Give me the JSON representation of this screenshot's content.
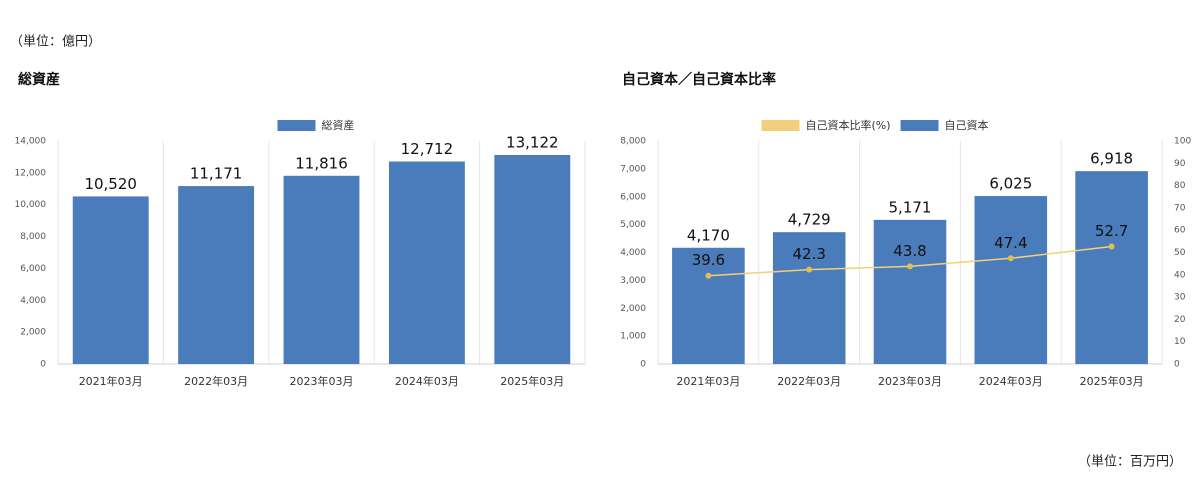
{
  "notes": {
    "top": "（単位：億円）",
    "bottom": "（単位：百万円）"
  },
  "chart_data": [
    {
      "type": "bar",
      "title": "総資産",
      "categories": [
        "2021年03月",
        "2022年03月",
        "2023年03月",
        "2024年03月",
        "2025年03月"
      ],
      "series": [
        {
          "name": "総資産",
          "type": "bar",
          "color": "#4a7bba",
          "values": [
            10520,
            11171,
            11816,
            12712,
            13122
          ],
          "value_labels": [
            "10,520",
            "11,171",
            "11,816",
            "12,712",
            "13,122"
          ]
        }
      ],
      "ylim": [
        0,
        14000
      ],
      "yticks": [
        0,
        {
          "value": 2000,
          "label": "2,000"
        },
        {
          "value": 4000,
          "label": "4,000"
        },
        {
          "value": 6000,
          "label": "6,000"
        },
        {
          "value": 8000,
          "label": "8,000"
        },
        {
          "value": 10000,
          "label": "10,000"
        },
        {
          "value": 12000,
          "label": "12,000"
        },
        {
          "value": 14000,
          "label": "14,000"
        }
      ],
      "grid": false,
      "legend": "top"
    },
    {
      "type": "combo",
      "title": "自己資本／自己資本比率",
      "categories": [
        "2021年03月",
        "2022年03月",
        "2023年03月",
        "2024年03月",
        "2025年03月"
      ],
      "series": [
        {
          "name": "自己資本比率(%)",
          "type": "line",
          "axis": "y2",
          "color": "#f2cf7c",
          "marker_color": "#e2bd52",
          "values": [
            39.6,
            42.3,
            43.8,
            47.4,
            52.7
          ]
        },
        {
          "name": "自己資本",
          "type": "bar",
          "color": "#4a7bba",
          "values": [
            4170,
            4729,
            5171,
            6025,
            6918
          ],
          "value_labels": [
            "4,170",
            "4,729",
            "5,171",
            "6,025",
            "6,918"
          ]
        }
      ],
      "ylim": [
        0,
        8000
      ],
      "yticks": [
        0,
        {
          "value": 1000,
          "label": "1,000"
        },
        {
          "value": 2000,
          "label": "2,000"
        },
        {
          "value": 3000,
          "label": "3,000"
        },
        {
          "value": 4000,
          "label": "4,000"
        },
        {
          "value": 5000,
          "label": "5,000"
        },
        {
          "value": 6000,
          "label": "6,000"
        },
        {
          "value": 7000,
          "label": "7,000"
        },
        {
          "value": 8000,
          "label": "8,000"
        }
      ],
      "y2lim": [
        0,
        100
      ],
      "y2ticks": [
        0,
        10,
        20,
        30,
        40,
        50,
        60,
        70,
        80,
        90,
        100
      ],
      "grid": false,
      "legend": "top"
    }
  ]
}
